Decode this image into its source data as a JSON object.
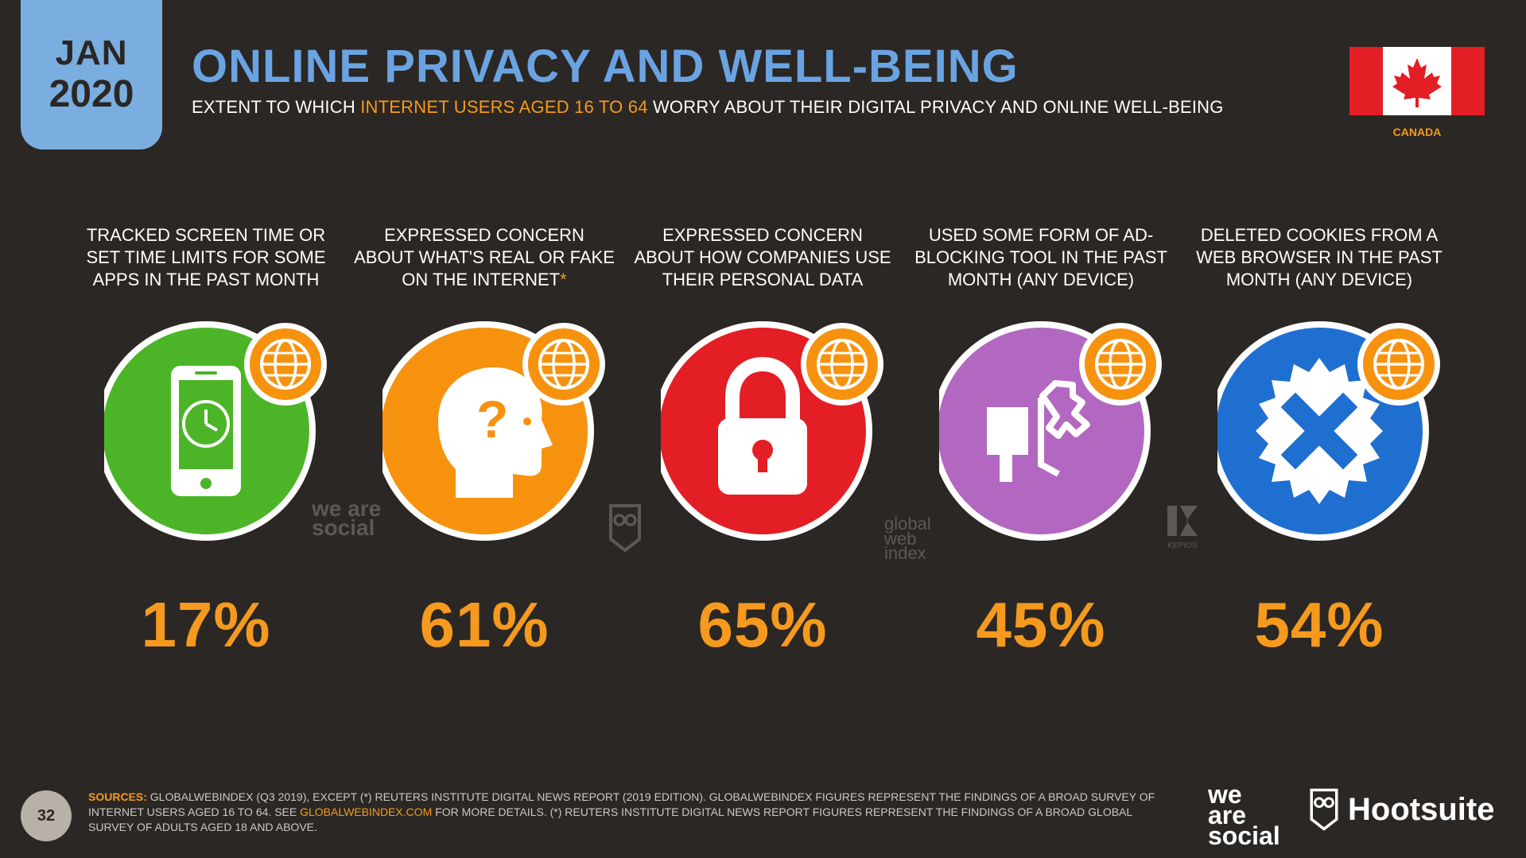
{
  "header": {
    "date_month": "JAN",
    "date_year": "2020",
    "title": "ONLINE PRIVACY AND WELL-BEING",
    "subtitle_pre": "EXTENT TO WHICH ",
    "subtitle_highlight": "INTERNET USERS AGED 16 TO 64",
    "subtitle_post": " WORRY ABOUT THEIR DIGITAL PRIVACY AND ONLINE WELL-BEING",
    "country": "CANADA"
  },
  "stats": [
    {
      "label": "TRACKED SCREEN TIME OR SET TIME LIMITS FOR SOME APPS IN THE PAST MONTH",
      "label_star": "",
      "value": "17%",
      "color": "#4bb527",
      "icon": "phone-clock-icon"
    },
    {
      "label": "EXPRESSED CONCERN ABOUT WHAT'S REAL OR FAKE ON THE INTERNET",
      "label_star": "*",
      "value": "61%",
      "color": "#f7920f",
      "icon": "head-question-icon"
    },
    {
      "label": "EXPRESSED CONCERN ABOUT HOW COMPANIES USE THEIR PERSONAL DATA",
      "label_star": "",
      "value": "65%",
      "color": "#e31e24",
      "icon": "padlock-icon"
    },
    {
      "label": "USED SOME FORM OF AD-BLOCKING TOOL IN THE PAST MONTH (ANY DEVICE)",
      "label_star": "",
      "value": "45%",
      "color": "#b267c1",
      "icon": "megaphone-blocked-icon"
    },
    {
      "label": "DELETED COOKIES FROM A WEB BROWSER IN THE PAST MONTH (ANY DEVICE)",
      "label_star": "",
      "value": "54%",
      "color": "#1f6fd1",
      "icon": "cookie-delete-icon"
    }
  ],
  "watermarks": {
    "we_are_social": "we are social",
    "global_web_index": "global web index",
    "kepios": "KEPIOS"
  },
  "footer": {
    "page_number": "32",
    "sources_label": "SOURCES:",
    "sources_text_1": " GLOBALWEBINDEX (Q3 2019), EXCEPT (*) REUTERS INSTITUTE DIGITAL NEWS REPORT (2019 EDITION). GLOBALWEBINDEX FIGURES REPRESENT THE FINDINGS OF A BROAD SURVEY OF INTERNET USERS AGED 16 TO 64. SEE ",
    "sources_link": "GLOBALWEBINDEX.COM",
    "sources_text_2": " FOR MORE DETAILS. (*) REUTERS INSTITUTE DIGITAL NEWS REPORT FIGURES REPRESENT THE FINDINGS OF A BROAD GLOBAL SURVEY OF ADULTS AGED 18 AND ABOVE.",
    "logo_we": "we",
    "logo_are": "are",
    "logo_social": "social",
    "logo_hootsuite": "Hootsuite"
  }
}
